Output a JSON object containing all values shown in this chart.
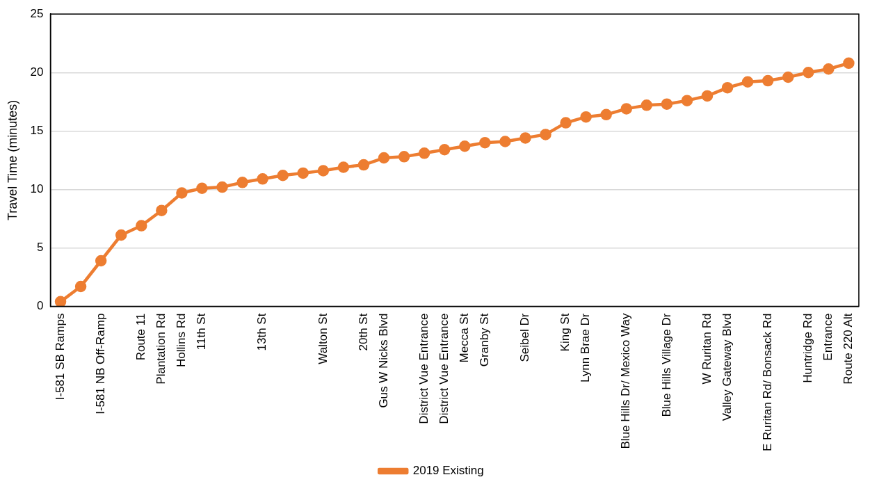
{
  "chart_data": {
    "type": "line",
    "ylabel": "Travel Time (minutes)",
    "categories": [
      "I-581 SB Ramps",
      null,
      "I-581 NB Off-Ramp",
      null,
      "Route 11",
      "Plantation Rd",
      "Hollins Rd",
      "11th St",
      null,
      null,
      "13th St",
      null,
      null,
      "Walton St",
      null,
      "20th St",
      "Gus W Nicks Blvd",
      null,
      "District Vue Entrance",
      "District Vue Entrance",
      "Mecca St",
      "Granby St",
      null,
      "Seibel Dr",
      null,
      "King St",
      "Lynn Brae Dr",
      null,
      "Blue Hills Dr/ Mexico Way",
      null,
      "Blue Hills Village Dr",
      null,
      "W Ruritan Rd",
      "Valley Gateway Blvd",
      null,
      "E Ruritan Rd/ Bonsack Rd",
      null,
      "Huntridge Rd",
      "Entrance",
      "Route 220 Alt"
    ],
    "series": [
      {
        "name": "2019 Existing",
        "color": "#ed7d31",
        "values": [
          0.4,
          1.7,
          3.9,
          6.1,
          6.9,
          8.2,
          9.7,
          10.1,
          10.2,
          10.6,
          10.9,
          11.2,
          11.4,
          11.6,
          11.9,
          12.1,
          12.7,
          12.8,
          13.1,
          13.4,
          13.7,
          14.0,
          14.1,
          14.4,
          14.7,
          15.7,
          16.2,
          16.4,
          16.9,
          17.2,
          17.3,
          17.6,
          18.0,
          18.7,
          19.2,
          19.3,
          19.6,
          20.0,
          20.3,
          20.8
        ]
      }
    ],
    "ylim": [
      0,
      25
    ],
    "yticks": [
      0,
      5,
      10,
      15,
      20,
      25
    ],
    "grid": "y",
    "legend": "bottom",
    "marker": "circle",
    "line_style": "solid"
  }
}
